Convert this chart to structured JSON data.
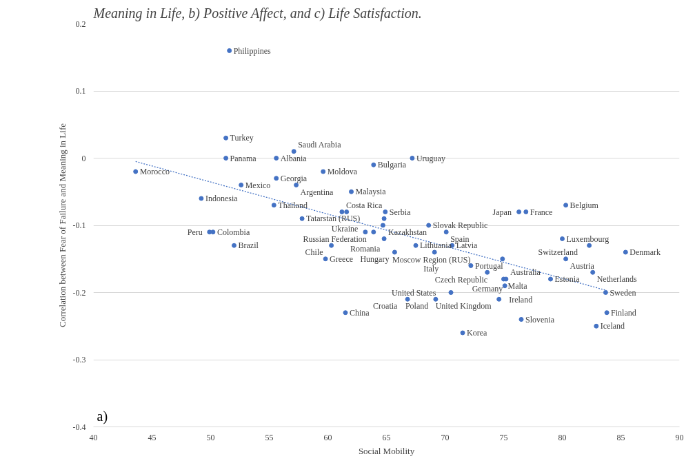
{
  "chart_data": {
    "type": "scatter",
    "title": "Meaning in Life, b) Positive Affect, and c) Life Satisfaction.",
    "xlabel": "Social Mobility",
    "ylabel": "Correlation between Fear of Failure and Meaning in Life",
    "xlim": [
      40,
      90
    ],
    "xticks": [
      40,
      45,
      50,
      55,
      60,
      65,
      70,
      75,
      80,
      85,
      90
    ],
    "ylim": [
      -0.4,
      0.2
    ],
    "yticks": [
      -0.4,
      -0.3,
      -0.2,
      -0.1,
      0,
      0.1,
      0.2
    ],
    "grid": "y",
    "series": [
      {
        "marker": "circle",
        "color": "#4472c4",
        "x": [
          51.6,
          51.3,
          51.3,
          55.6,
          57.1,
          55.6,
          57.3,
          59.6,
          62.0,
          63.9,
          67.2,
          43.6,
          52.6,
          49.2,
          55.4,
          57.8,
          49.9,
          50.2,
          52.0,
          61.2,
          61.6,
          64.9,
          64.8,
          64.7,
          63.2,
          63.9,
          64.8,
          60.3,
          65.7,
          59.8,
          68.6,
          70.1,
          67.5,
          69.1,
          70.6,
          72.2,
          76.3,
          76.9,
          80.3,
          80.0,
          82.3,
          85.4,
          80.3,
          74.9,
          82.6,
          73.6,
          75.0,
          75.2,
          79.0,
          75.1,
          83.7,
          70.5,
          74.6,
          66.8,
          69.2,
          61.5,
          71.5,
          76.5,
          83.8,
          82.9
        ],
        "values": [
          0.16,
          0.03,
          0,
          0,
          0.01,
          -0.03,
          -0.04,
          -0.02,
          -0.05,
          -0.01,
          0,
          -0.02,
          -0.04,
          -0.06,
          -0.07,
          -0.09,
          -0.11,
          -0.11,
          -0.13,
          -0.08,
          -0.08,
          -0.08,
          -0.09,
          -0.1,
          -0.11,
          -0.11,
          -0.12,
          -0.13,
          -0.14,
          -0.15,
          -0.1,
          -0.11,
          -0.13,
          -0.14,
          -0.13,
          -0.16,
          -0.08,
          -0.08,
          -0.07,
          -0.12,
          -0.13,
          -0.14,
          -0.15,
          -0.15,
          -0.17,
          -0.17,
          -0.18,
          -0.18,
          -0.18,
          -0.19,
          -0.2,
          -0.2,
          -0.21,
          -0.21,
          -0.21,
          -0.23,
          -0.26,
          -0.24,
          -0.23,
          -0.25
        ]
      },
      {
        "type": "line",
        "color": "#4472c4",
        "line_style": "dotted",
        "x": [
          43.6,
          83.8
        ],
        "values": [
          -0.005,
          -0.197
        ]
      }
    ],
    "annotations": [
      {
        "text": "Philippines",
        "x": 51.6,
        "y": 0.16
      },
      {
        "text": "Turkey",
        "x": 51.3,
        "y": 0.03
      },
      {
        "text": "Panama",
        "x": 51.3,
        "y": 0
      },
      {
        "text": "Albania",
        "x": 55.6,
        "y": 0
      },
      {
        "text": "Saudi Arabia",
        "x": 57.1,
        "y": 0.01
      },
      {
        "text": "Georgia",
        "x": 55.6,
        "y": -0.03
      },
      {
        "text": "Argentina",
        "x": 57.3,
        "y": -0.04
      },
      {
        "text": "Moldova",
        "x": 59.6,
        "y": -0.02
      },
      {
        "text": "Malaysia",
        "x": 62.0,
        "y": -0.05
      },
      {
        "text": "Bulgaria",
        "x": 63.9,
        "y": -0.01
      },
      {
        "text": "Uruguay",
        "x": 67.2,
        "y": 0
      },
      {
        "text": "Morocco",
        "x": 43.6,
        "y": -0.02
      },
      {
        "text": "Mexico",
        "x": 52.6,
        "y": -0.04
      },
      {
        "text": "Indonesia",
        "x": 49.2,
        "y": -0.06
      },
      {
        "text": "Thailand",
        "x": 55.4,
        "y": -0.07
      },
      {
        "text": "Tatarstan (RUS)",
        "x": 57.8,
        "y": -0.09
      },
      {
        "text": "Peru",
        "x": 49.9,
        "y": -0.11
      },
      {
        "text": "Colombia",
        "x": 50.2,
        "y": -0.11
      },
      {
        "text": "Brazil",
        "x": 52.0,
        "y": -0.13
      },
      {
        "text": "Costa Rica",
        "x": 61.2,
        "y": -0.08
      },
      {
        "text": "Ukraine",
        "x": 61.6,
        "y": -0.08
      },
      {
        "text": "Serbia",
        "x": 64.9,
        "y": -0.08
      },
      {
        "text": "Kazakhstan",
        "x": 64.8,
        "y": -0.09
      },
      {
        "text": "Russian Federation",
        "x": 64.7,
        "y": -0.1
      },
      {
        "text": "Romania",
        "x": 63.2,
        "y": -0.11
      },
      {
        "text": "Moscow Region (RUS)",
        "x": 64.8,
        "y": -0.12
      },
      {
        "text": "Chile",
        "x": 60.3,
        "y": -0.13
      },
      {
        "text": "Hungary",
        "x": 65.7,
        "y": -0.14
      },
      {
        "text": "Greece",
        "x": 59.8,
        "y": -0.15
      },
      {
        "text": "Slovak Republic",
        "x": 68.6,
        "y": -0.1
      },
      {
        "text": "Spain",
        "x": 70.1,
        "y": -0.11
      },
      {
        "text": "Lithuania",
        "x": 67.5,
        "y": -0.13
      },
      {
        "text": "Italy",
        "x": 69.1,
        "y": -0.14
      },
      {
        "text": "Latvia",
        "x": 70.6,
        "y": -0.13
      },
      {
        "text": "Portugal",
        "x": 72.2,
        "y": -0.16
      },
      {
        "text": "Japan",
        "x": 76.3,
        "y": -0.08
      },
      {
        "text": "France",
        "x": 76.9,
        "y": -0.08
      },
      {
        "text": "Belgium",
        "x": 80.3,
        "y": -0.07
      },
      {
        "text": "Luxembourg",
        "x": 80.0,
        "y": -0.12
      },
      {
        "text": "Switzerland",
        "x": 82.3,
        "y": -0.13
      },
      {
        "text": "Denmark",
        "x": 85.4,
        "y": -0.14
      },
      {
        "text": "Austria",
        "x": 80.3,
        "y": -0.15
      },
      {
        "text": "Czech Republic",
        "x": 74.9,
        "y": -0.15
      },
      {
        "text": "Netherlands",
        "x": 82.6,
        "y": -0.17
      },
      {
        "text": "Germany",
        "x": 73.6,
        "y": -0.17
      },
      {
        "text": "Malta",
        "x": 75.0,
        "y": -0.18
      },
      {
        "text": "Australia",
        "x": 75.2,
        "y": -0.18
      },
      {
        "text": "Estonia",
        "x": 79.0,
        "y": -0.18
      },
      {
        "text": "Ireland",
        "x": 75.1,
        "y": -0.19
      },
      {
        "text": "Sweden",
        "x": 83.7,
        "y": -0.2
      },
      {
        "text": "United States",
        "x": 70.5,
        "y": -0.2
      },
      {
        "text": "United Kingdom",
        "x": 74.6,
        "y": -0.21
      },
      {
        "text": "Croatia",
        "x": 66.8,
        "y": -0.21
      },
      {
        "text": "Poland",
        "x": 69.2,
        "y": -0.21
      },
      {
        "text": "China",
        "x": 61.5,
        "y": -0.23
      },
      {
        "text": "Korea",
        "x": 71.5,
        "y": -0.26
      },
      {
        "text": "Slovenia",
        "x": 76.5,
        "y": -0.24
      },
      {
        "text": "Finland",
        "x": 83.8,
        "y": -0.23
      },
      {
        "text": "Iceland",
        "x": 82.9,
        "y": -0.25
      },
      "a)"
    ]
  }
}
